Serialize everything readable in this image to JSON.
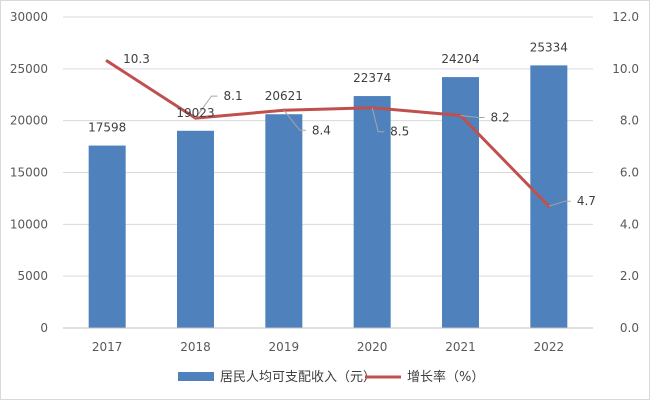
{
  "chart_data": {
    "type": "bar",
    "categories": [
      "2017",
      "2018",
      "2019",
      "2020",
      "2021",
      "2022"
    ],
    "series": [
      {
        "name": "居民人均可支配收入（元）",
        "type": "bar",
        "axis": "left",
        "color": "#4f81bd",
        "values": [
          17598,
          19023,
          20621,
          22374,
          24204,
          25334
        ],
        "labels": [
          "17598",
          "19023",
          "20621",
          "22374",
          "24204",
          "25334"
        ]
      },
      {
        "name": "增长率（%）",
        "type": "line",
        "axis": "right",
        "color": "#c0504d",
        "values": [
          10.3,
          8.1,
          8.4,
          8.5,
          8.2,
          4.7
        ],
        "labels": [
          "10.3",
          "8.1",
          "8.4",
          "8.5",
          "8.2",
          "4.7"
        ]
      }
    ],
    "ylim": [
      0,
      30000
    ],
    "y2lim": [
      0,
      12
    ],
    "yticks": [
      "0",
      "5000",
      "10000",
      "15000",
      "20000",
      "25000",
      "30000"
    ],
    "y2ticks": [
      "0.0",
      "2.0",
      "4.0",
      "6.0",
      "8.0",
      "10.0",
      "12.0"
    ],
    "grid": true,
    "legend": "bottom"
  }
}
